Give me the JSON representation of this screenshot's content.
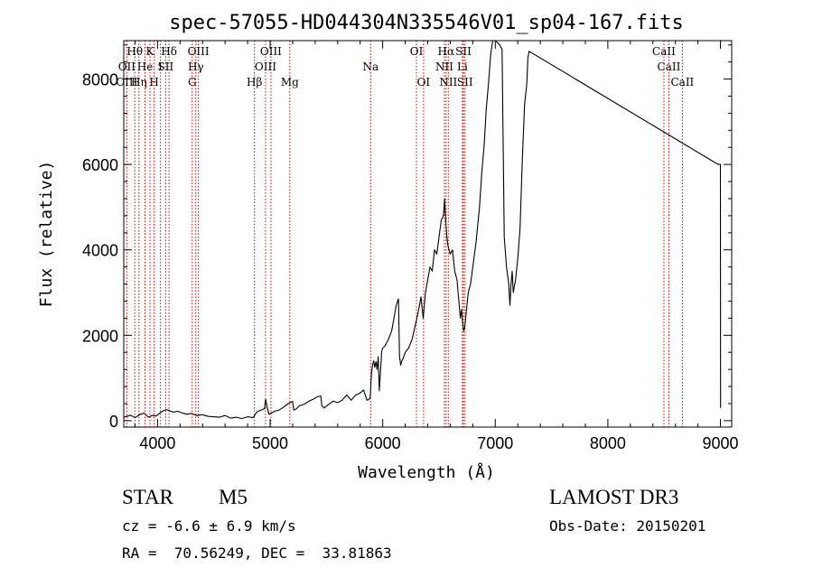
{
  "chart_data": {
    "type": "line",
    "title": "spec-57055-HD044304N335546V01_sp04-167.fits",
    "xlabel": "Wavelength (Å)",
    "ylabel": "Flux (relative)",
    "xlim": [
      3700,
      9100
    ],
    "ylim": [
      -150,
      8900
    ],
    "xticks": [
      4000,
      5000,
      6000,
      7000,
      8000,
      9000
    ],
    "yticks": [
      0,
      2000,
      4000,
      6000,
      8000
    ],
    "grid": false,
    "series": [
      {
        "x": [
          3700,
          3760,
          3800,
          3840,
          3880,
          3920,
          3950,
          3990,
          4020,
          4050,
          4080,
          4110,
          4140,
          4180,
          4220,
          4260,
          4300,
          4350,
          4400,
          4450,
          4500,
          4550,
          4600,
          4650,
          4700,
          4750,
          4800,
          4850,
          4880,
          4920,
          4950,
          4960,
          4975,
          4990,
          5010,
          5040,
          5080,
          5120,
          5160,
          5200,
          5210,
          5230,
          5260,
          5300,
          5340,
          5380,
          5420,
          5450,
          5460,
          5480,
          5520,
          5560,
          5600,
          5640,
          5680,
          5720,
          5760,
          5800,
          5830,
          5860,
          5880,
          5890,
          5900,
          5910,
          5920,
          5930,
          5940,
          5950,
          5960,
          5970,
          5985,
          5990,
          6000,
          6020,
          6050,
          6080,
          6100,
          6120,
          6140,
          6150,
          6160,
          6170,
          6180,
          6200,
          6230,
          6260,
          6300,
          6320,
          6340,
          6360,
          6380,
          6400,
          6420,
          6440,
          6460,
          6480,
          6500,
          6520,
          6540,
          6550,
          6560,
          6570,
          6580,
          6600,
          6620,
          6640,
          6660,
          6680,
          6690,
          6700,
          6710,
          6720,
          6730,
          6740,
          6760,
          6780,
          6800,
          6830,
          6860,
          6880,
          6900,
          6920,
          6940,
          6960,
          6980,
          7000,
          7020,
          7040,
          7060,
          7080,
          7100,
          7120,
          7130,
          7140,
          7150,
          7160,
          7180,
          7200,
          7220,
          7240,
          7260,
          7280,
          7290,
          7300,
          8980,
          9000,
          9001
        ],
        "y": [
          80,
          130,
          70,
          140,
          180,
          80,
          120,
          110,
          180,
          230,
          260,
          230,
          200,
          220,
          180,
          150,
          170,
          120,
          140,
          100,
          90,
          80,
          120,
          60,
          80,
          50,
          90,
          70,
          200,
          250,
          280,
          500,
          300,
          150,
          180,
          220,
          250,
          320,
          400,
          450,
          250,
          270,
          350,
          380,
          450,
          500,
          560,
          580,
          350,
          300,
          380,
          460,
          420,
          480,
          600,
          480,
          600,
          650,
          720,
          480,
          500,
          570,
          1100,
          1300,
          1400,
          1250,
          1380,
          1200,
          1500,
          700,
          1350,
          1600,
          1700,
          1750,
          1900,
          2100,
          2400,
          2700,
          2850,
          1500,
          1300,
          1400,
          1450,
          1600,
          1700,
          1900,
          2350,
          2600,
          2900,
          2400,
          3000,
          3300,
          3600,
          3500,
          4000,
          3900,
          4300,
          4700,
          4800,
          5200,
          4700,
          4300,
          4100,
          3900,
          4000,
          3500,
          3300,
          2700,
          2400,
          2600,
          2300,
          2100,
          2200,
          2500,
          3000,
          3200,
          3600,
          4200,
          5000,
          5800,
          6400,
          7300,
          7900,
          8600,
          8950,
          8900,
          8850,
          8800,
          8700,
          4300,
          3600,
          3200,
          2700,
          3200,
          3500,
          3000,
          3300,
          3800,
          4500,
          6100,
          7400,
          7900,
          8500,
          8650,
          6000,
          6000,
          300
        ]
      }
    ]
  },
  "line_markers": {
    "wavelengths": [
      3727,
      3798,
      3835,
      3889,
      3933,
      3970,
      4026,
      4072,
      4102,
      4308,
      4340,
      4363,
      4861,
      4959,
      5007,
      5175,
      5893,
      6300,
      6363,
      6548,
      6563,
      6583,
      6708,
      6717,
      6731,
      8498,
      8542,
      8662
    ],
    "labels": [
      {
        "text": "Hθ",
        "wl": 3798,
        "row": 1
      },
      {
        "text": "K",
        "wl": 3933,
        "row": 1
      },
      {
        "text": "Hδ",
        "wl": 4102,
        "row": 1
      },
      {
        "text": "OIII",
        "wl": 4363,
        "row": 1
      },
      {
        "text": "OIII",
        "wl": 5007,
        "row": 1
      },
      {
        "text": "OI",
        "wl": 6300,
        "row": 1
      },
      {
        "text": "Hα",
        "wl": 6563,
        "row": 1
      },
      {
        "text": "SII",
        "wl": 6717,
        "row": 1
      },
      {
        "text": "CaII",
        "wl": 8498,
        "row": 1
      },
      {
        "text": "OII",
        "wl": 3727,
        "row": 2
      },
      {
        "text": "He",
        "wl": 3889,
        "row": 2
      },
      {
        "text": "I",
        "wl": 4026,
        "row": 2
      },
      {
        "text": "SII",
        "wl": 4072,
        "row": 2
      },
      {
        "text": "Hγ",
        "wl": 4340,
        "row": 2
      },
      {
        "text": "OIII",
        "wl": 4959,
        "row": 2
      },
      {
        "text": "Na",
        "wl": 5893,
        "row": 2
      },
      {
        "text": "NII",
        "wl": 6548,
        "row": 2
      },
      {
        "text": "Li",
        "wl": 6708,
        "row": 2
      },
      {
        "text": "CaII",
        "wl": 8542,
        "row": 2
      },
      {
        "text": "OIII",
        "wl": 3727,
        "row": 3
      },
      {
        "text": "Hη",
        "wl": 3835,
        "row": 3
      },
      {
        "text": "H",
        "wl": 3970,
        "row": 3
      },
      {
        "text": "G",
        "wl": 4308,
        "row": 3
      },
      {
        "text": "Hβ",
        "wl": 4861,
        "row": 3
      },
      {
        "text": "Mg",
        "wl": 5175,
        "row": 3
      },
      {
        "text": "OI",
        "wl": 6363,
        "row": 3
      },
      {
        "text": "NII",
        "wl": 6583,
        "row": 3
      },
      {
        "text": "SII",
        "wl": 6731,
        "row": 3
      },
      {
        "text": "CaII",
        "wl": 8662,
        "row": 3
      }
    ],
    "color": "#cc0000"
  },
  "footer": {
    "object_class": "STAR",
    "subclass": "M5",
    "survey": "LAMOST DR3",
    "redshift": "cz = -6.6 ± 6.9 km/s",
    "obs_date": "Obs-Date: 20150201",
    "coords": "RA =  70.56249, DEC =  33.81863"
  }
}
